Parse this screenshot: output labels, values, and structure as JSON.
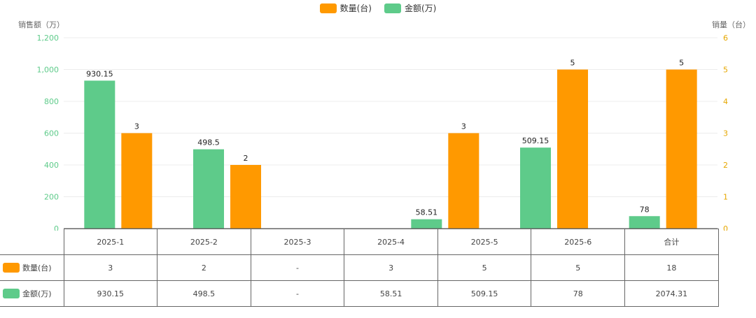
{
  "legend": {
    "quantity_label": "数量(台)",
    "amount_label": "金额(万)"
  },
  "colors": {
    "quantity": "#FF9900",
    "amount": "#5ECB8A",
    "left_axis": "#5ECB8A",
    "right_axis": "#E6A700"
  },
  "chart_data": {
    "type": "bar",
    "categories": [
      "2025-1",
      "2025-2",
      "2025-3",
      "2025-4",
      "2025-5",
      "2025-6"
    ],
    "series": [
      {
        "name": "金额(万)",
        "axis": "left",
        "values": [
          930.15,
          498.5,
          null,
          58.51,
          509.15,
          78
        ],
        "labels": [
          "930.15",
          "498.5",
          "",
          "58.51",
          "509.15",
          "78"
        ]
      },
      {
        "name": "数量(台)",
        "axis": "right",
        "values": [
          3,
          2,
          null,
          3,
          5,
          5
        ],
        "labels": [
          "3",
          "2",
          "",
          "3",
          "5",
          "5"
        ]
      }
    ],
    "ylabel_left": "销售额（万）",
    "ylabel_right": "销量（台）",
    "ylim_left": [
      0,
      1200
    ],
    "yticks_left": [
      "0",
      "200",
      "400",
      "600",
      "800",
      "1,000",
      "1,200"
    ],
    "ylim_right": [
      0,
      6
    ],
    "yticks_right": [
      "0",
      "1",
      "2",
      "3",
      "4",
      "5",
      "6"
    ],
    "grid": true,
    "legend_position": "top-center"
  },
  "table": {
    "headers": [
      "2025-1",
      "2025-2",
      "2025-3",
      "2025-4",
      "2025-5",
      "2025-6",
      "合计"
    ],
    "rows": [
      {
        "label": "数量(台)",
        "cells": [
          "3",
          "2",
          "-",
          "3",
          "5",
          "5",
          "18"
        ]
      },
      {
        "label": "金额(万)",
        "cells": [
          "930.15",
          "498.5",
          "-",
          "58.51",
          "509.15",
          "78",
          "2074.31"
        ]
      }
    ]
  }
}
